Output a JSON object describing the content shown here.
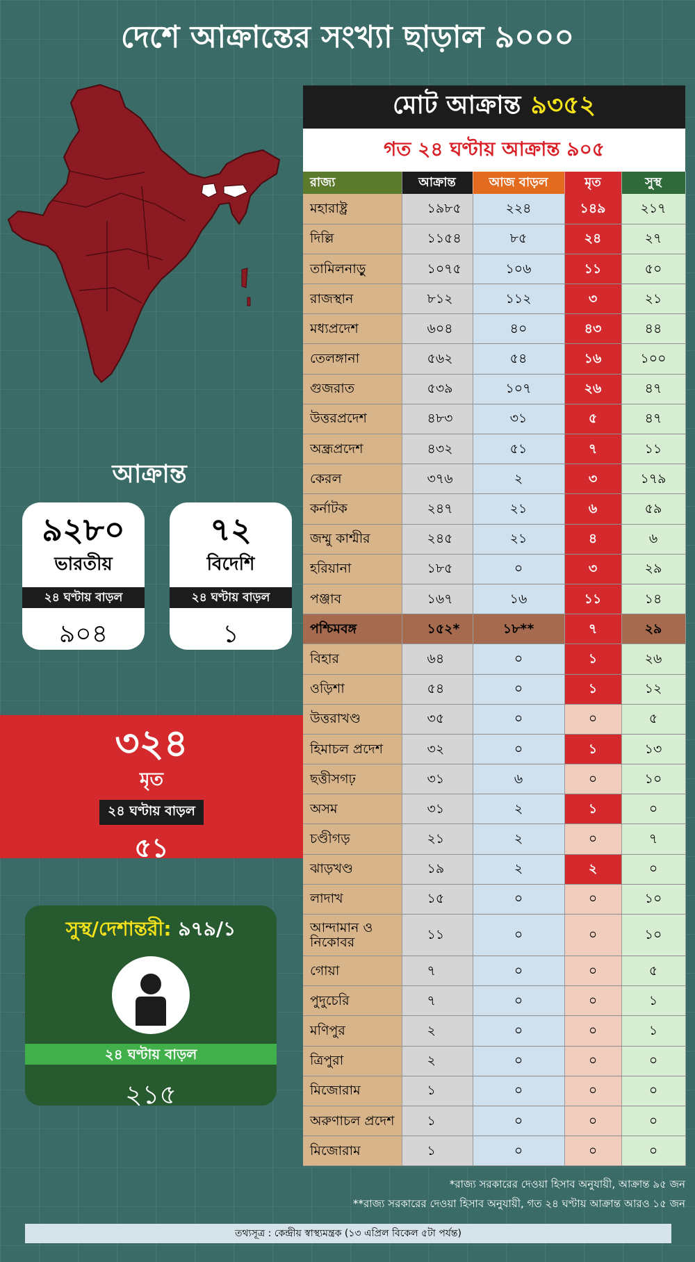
{
  "title": "দেশে আক্রান্তের সংখ্যা ছাড়াল ৯০০০",
  "total": {
    "label": "মোট আক্রান্ত",
    "value": "৯৩৫২"
  },
  "today": "গত ২৪ ঘণ্টায় আক্রান্ত ৯০৫",
  "table": {
    "headers": [
      "রাজ্য",
      "আক্রান্ত",
      "আজ বাড়ল",
      "মৃত",
      "সুস্থ"
    ],
    "rows": [
      [
        "মহারাষ্ট্র",
        "১৯৮৫",
        "২২৪",
        "১৪৯",
        "২১৭"
      ],
      [
        "দিল্লি",
        "১১৫৪",
        "৮৫",
        "২৪",
        "২৭"
      ],
      [
        "তামিলনাড়ু",
        "১০৭৫",
        "১০৬",
        "১১",
        "৫০"
      ],
      [
        "রাজস্থান",
        "৮১২",
        "১১২",
        "৩",
        "২১"
      ],
      [
        "মধ্যপ্রদেশ",
        "৬০৪",
        "৪০",
        "৪৩",
        "৪৪"
      ],
      [
        "তেলঙ্গানা",
        "৫৬২",
        "৫৪",
        "১৬",
        "১০০"
      ],
      [
        "গুজরাত",
        "৫৩৯",
        "১০৭",
        "২৬",
        "৪৭"
      ],
      [
        "উত্তরপ্রদেশ",
        "৪৮৩",
        "৩১",
        "৫",
        "৪৭"
      ],
      [
        "অন্ধ্রপ্রদেশ",
        "৪৩২",
        "৫১",
        "৭",
        "১১"
      ],
      [
        "কেরল",
        "৩৭৬",
        "২",
        "৩",
        "১৭৯"
      ],
      [
        "কর্নাটক",
        "২৪৭",
        "২১",
        "৬",
        "৫৯"
      ],
      [
        "জম্মু কাশ্মীর",
        "২৪৫",
        "২১",
        "৪",
        "৬"
      ],
      [
        "হরিয়ানা",
        "১৮৫",
        "০",
        "৩",
        "২৯"
      ],
      [
        "পঞ্জাব",
        "১৬৭",
        "১৬",
        "১১",
        "১৪"
      ],
      [
        "পশ্চিমবঙ্গ",
        "১৫২*",
        "১৮**",
        "৭",
        "২৯"
      ],
      [
        "বিহার",
        "৬৪",
        "০",
        "১",
        "২৬"
      ],
      [
        "ওড়িশা",
        "৫৪",
        "০",
        "১",
        "১২"
      ],
      [
        "উত্তরাখণ্ড",
        "৩৫",
        "০",
        "০",
        "৫"
      ],
      [
        "হিমাচল প্রদেশ",
        "৩২",
        "০",
        "১",
        "১৩"
      ],
      [
        "ছত্তীসগঢ়",
        "৩১",
        "৬",
        "০",
        "১০"
      ],
      [
        "অসম",
        "৩১",
        "২",
        "১",
        "০"
      ],
      [
        "চণ্ডীগড়",
        "২১",
        "২",
        "০",
        "৭"
      ],
      [
        "ঝাড়খণ্ড",
        "১৯",
        "২",
        "২",
        "০"
      ],
      [
        "লাদাখ",
        "১৫",
        "০",
        "০",
        "১০"
      ],
      [
        "আন্দামান ও নিকোবর",
        "১১",
        "০",
        "০",
        "১০"
      ],
      [
        "গোয়া",
        "৭",
        "০",
        "০",
        "৫"
      ],
      [
        "পুদুচেরি",
        "৭",
        "০",
        "০",
        "১"
      ],
      [
        "মণিপুর",
        "২",
        "০",
        "০",
        "১"
      ],
      [
        "ত্রিপুরা",
        "২",
        "০",
        "০",
        "০"
      ],
      [
        "মিজোরাম",
        "১",
        "০",
        "০",
        "০"
      ],
      [
        "অরুণাচল প্রদেশ",
        "১",
        "০",
        "০",
        "০"
      ],
      [
        "মিজোরাম",
        "১",
        "০",
        "০",
        "০"
      ]
    ]
  },
  "affected_heading": "আক্রান্ত",
  "indian": {
    "value": "৯২৮০",
    "label": "ভারতীয়",
    "bar": "২৪ ঘণ্টায় বাড়ল",
    "increase": "৯০৪"
  },
  "foreign": {
    "value": "৭২",
    "label": "বিদেশি",
    "bar": "২৪ ঘণ্টায় বাড়ল",
    "increase": "১"
  },
  "deaths": {
    "value": "৩২৪",
    "label": "মৃত",
    "bar": "২৪ ঘণ্টায় বাড়ল",
    "increase": "৫১"
  },
  "recovered": {
    "label": "সুস্থ/দেশান্তরী:",
    "value": "৯৭৯/১",
    "bar": "২৪ ঘণ্টায় বাড়ল",
    "increase": "২১৫"
  },
  "notes": [
    "*রাজ্য সরকারের দেওয়া হিসাব অনুযায়ী, আক্রান্ত ৯৫ জন",
    "**রাজ্য সরকারের দেওয়া হিসাব অনুযায়ী, গত ২৪ ঘণ্টায় আক্রান্ত আরও ১৫ জন"
  ],
  "source": "তথ্যসূত্র : কেন্দ্রীয় স্বাস্থ্যমন্ত্রক (১৩ এপ্রিল বিকেল ৫টা পর্যন্ত)",
  "colors": {
    "background": "#3a6b66",
    "red": "#d42a2e",
    "yellow": "#f6e21b",
    "green": "#285a30"
  },
  "icons": [
    "india-map-icon",
    "person-icon"
  ]
}
